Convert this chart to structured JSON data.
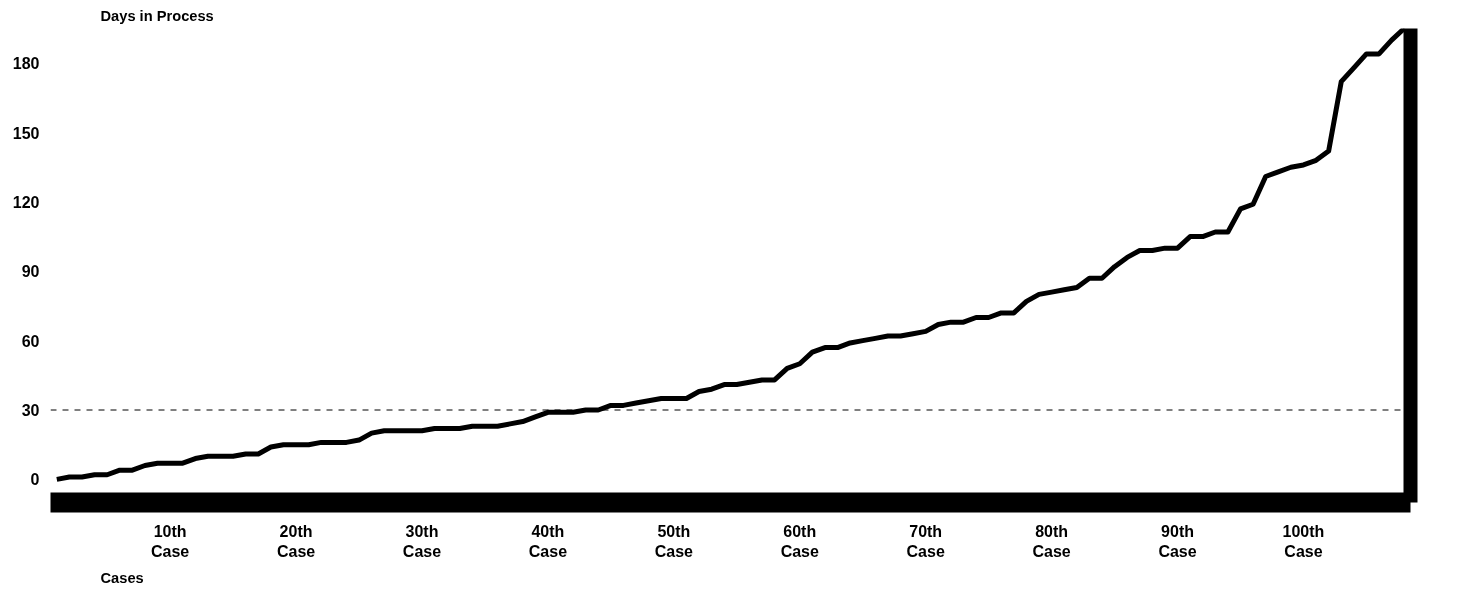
{
  "chart_data": {
    "type": "line",
    "ylabel": "Days in Process",
    "xlabel": "Cases",
    "x": [
      1,
      2,
      3,
      4,
      5,
      6,
      7,
      8,
      9,
      10,
      11,
      12,
      13,
      14,
      15,
      16,
      17,
      18,
      19,
      20,
      21,
      22,
      23,
      24,
      25,
      26,
      27,
      28,
      29,
      30,
      31,
      32,
      33,
      34,
      35,
      36,
      37,
      38,
      39,
      40,
      41,
      42,
      43,
      44,
      45,
      46,
      47,
      48,
      49,
      50,
      51,
      52,
      53,
      54,
      55,
      56,
      57,
      58,
      59,
      60,
      61,
      62,
      63,
      64,
      65,
      66,
      67,
      68,
      69,
      70,
      71,
      72,
      73,
      74,
      75,
      76,
      77,
      78,
      79,
      80,
      81,
      82,
      83,
      84,
      85,
      86,
      87,
      88,
      89,
      90,
      91,
      92,
      93,
      94,
      95,
      96,
      97,
      98,
      99,
      100,
      101,
      102,
      103,
      104,
      105,
      106,
      107,
      108
    ],
    "series": [
      {
        "color": "#000000",
        "values": [
          0,
          1,
          1,
          2,
          2,
          4,
          4,
          6,
          7,
          7,
          7,
          9,
          10,
          10,
          10,
          11,
          11,
          14,
          15,
          15,
          15,
          16,
          16,
          16,
          17,
          20,
          21,
          21,
          21,
          21,
          22,
          22,
          22,
          23,
          23,
          23,
          24,
          25,
          27,
          29,
          29,
          29,
          30,
          30,
          32,
          32,
          33,
          34,
          35,
          35,
          35,
          38,
          39,
          41,
          41,
          42,
          43,
          43,
          48,
          50,
          55,
          57,
          57,
          59,
          60,
          61,
          62,
          62,
          63,
          64,
          67,
          68,
          68,
          70,
          70,
          72,
          72,
          77,
          80,
          81,
          82,
          83,
          87,
          87,
          92,
          96,
          99,
          99,
          100,
          100,
          105,
          105,
          107,
          107,
          117,
          119,
          131,
          133,
          135,
          136,
          138,
          142,
          172,
          178,
          184,
          184,
          190,
          195
        ]
      }
    ],
    "xlim": [
      0.5,
      108.5
    ],
    "ylim": [
      -10,
      195
    ],
    "xticks": [
      {
        "value": 10,
        "label": "10th\nCase"
      },
      {
        "value": 20,
        "label": "20th\nCase"
      },
      {
        "value": 30,
        "label": "30th\nCase"
      },
      {
        "value": 40,
        "label": "40th\nCase"
      },
      {
        "value": 50,
        "label": "50th\nCase"
      },
      {
        "value": 60,
        "label": "60th\nCase"
      },
      {
        "value": 70,
        "label": "70th\nCase"
      },
      {
        "value": 80,
        "label": "80th\nCase"
      },
      {
        "value": 90,
        "label": "90th\nCase"
      },
      {
        "value": 100,
        "label": "100th\nCase"
      }
    ],
    "yticks": [
      0,
      30,
      60,
      90,
      120,
      150,
      180
    ],
    "ref_lines": [
      {
        "axis": "y",
        "value": 30,
        "line_style": "dashed",
        "color": "#000000"
      }
    ],
    "grid": false,
    "line_style": "solid",
    "marker": "none"
  }
}
